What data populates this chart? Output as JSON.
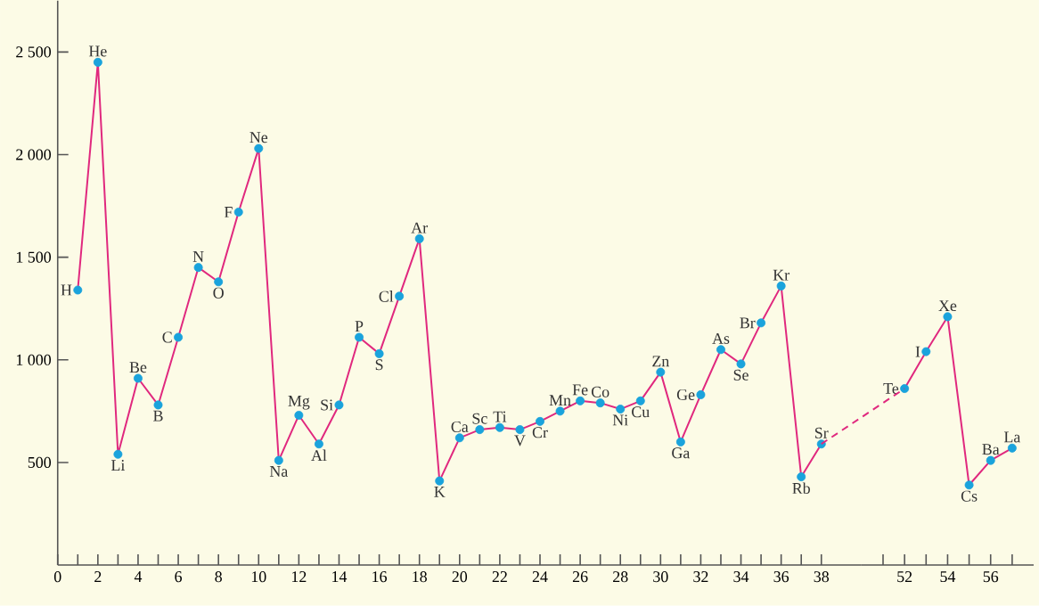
{
  "chart_data": [
    {
      "type": "line",
      "x": [
        1,
        2,
        3,
        4,
        5,
        6,
        7,
        8,
        9,
        10,
        11,
        12,
        13,
        14,
        15,
        16,
        17,
        18,
        19,
        20,
        21,
        22,
        23,
        24,
        25,
        26,
        27,
        28,
        29,
        30,
        31,
        32,
        33,
        34,
        35,
        36,
        37,
        38
      ],
      "series": [
        {
          "color": "#e0287e",
          "colors": [
            "#1aa3dc",
            "#1aa3dc",
            "#1aa3dc",
            "#1aa3dc",
            "#1aa3dc",
            "#1aa3dc",
            "#1aa3dc",
            "#1aa3dc",
            "#1aa3dc",
            "#1aa3dc",
            "#1aa3dc",
            "#1aa3dc",
            "#1aa3dc",
            "#1aa3dc",
            "#1aa3dc",
            "#1aa3dc",
            "#1aa3dc",
            "#1aa3dc",
            "#1aa3dc",
            "#1aa3dc",
            "#1aa3dc",
            "#1aa3dc",
            "#1aa3dc",
            "#1aa3dc",
            "#1aa3dc",
            "#1aa3dc",
            "#1aa3dc",
            "#1aa3dc",
            "#1aa3dc",
            "#1aa3dc",
            "#1aa3dc",
            "#1aa3dc",
            "#1aa3dc",
            "#1aa3dc",
            "#1aa3dc",
            "#1aa3dc",
            "#1aa3dc",
            "#1aa3dc"
          ],
          "values": [
            1340,
            2450,
            540,
            910,
            780,
            1110,
            1450,
            1380,
            1720,
            2030,
            510,
            730,
            590,
            780,
            1110,
            1030,
            1310,
            1590,
            410,
            620,
            660,
            670,
            660,
            700,
            750,
            800,
            790,
            760,
            800,
            940,
            600,
            830,
            1050,
            980,
            1180,
            1360,
            430,
            590
          ]
        }
      ],
      "marker": "circle",
      "line_style": "solid",
      "xlim": [
        0,
        40
      ],
      "ylim": [
        0,
        2750
      ],
      "xticks": [
        0,
        {
          "value": 1,
          "label": null
        },
        2,
        {
          "value": 3,
          "label": null
        },
        4,
        {
          "value": 5,
          "label": null
        },
        6,
        {
          "value": 7,
          "label": null
        },
        8,
        {
          "value": 9,
          "label": null
        },
        10,
        {
          "value": 11,
          "label": null
        },
        12,
        {
          "value": 13,
          "label": null
        },
        14,
        {
          "value": 15,
          "label": null
        },
        16,
        {
          "value": 17,
          "label": null
        },
        18,
        {
          "value": 19,
          "label": null
        },
        20,
        {
          "value": 21,
          "label": null
        },
        22,
        {
          "value": 23,
          "label": null
        },
        24,
        {
          "value": 25,
          "label": null
        },
        26,
        {
          "value": 27,
          "label": null
        },
        28,
        {
          "value": 29,
          "label": null
        },
        30,
        {
          "value": 31,
          "label": null
        },
        32,
        {
          "value": 33,
          "label": null
        },
        34,
        {
          "value": 35,
          "label": null
        },
        36,
        {
          "value": 37,
          "label": null
        },
        38
      ],
      "yticks": [
        500,
        {
          "value": 1000,
          "label": "1 000"
        },
        {
          "value": 1500,
          "label": "1 500"
        },
        {
          "value": 2000,
          "label": "2 000"
        },
        {
          "value": 2500,
          "label": "2 500"
        }
      ],
      "annotations": [
        {
          "text": "H",
          "x": 1,
          "y": 1340
        },
        {
          "text": "He",
          "x": 2,
          "y": 2450
        },
        {
          "text": "Li",
          "x": 3,
          "y": 540
        },
        {
          "text": "Be",
          "x": 4,
          "y": 910
        },
        {
          "text": "B",
          "x": 5,
          "y": 780
        },
        {
          "text": "C",
          "x": 6,
          "y": 1110
        },
        {
          "text": "N",
          "x": 7,
          "y": 1450
        },
        {
          "text": "O",
          "x": 8,
          "y": 1380
        },
        {
          "text": "F",
          "x": 9,
          "y": 1720
        },
        {
          "text": "Ne",
          "x": 10,
          "y": 2030
        },
        {
          "text": "Na",
          "x": 11,
          "y": 510
        },
        {
          "text": "Mg",
          "x": 12,
          "y": 730
        },
        {
          "text": "Al",
          "x": 13,
          "y": 590
        },
        {
          "text": "Si",
          "x": 14,
          "y": 780
        },
        {
          "text": "P",
          "x": 15,
          "y": 1110
        },
        {
          "text": "S",
          "x": 16,
          "y": 1030
        },
        {
          "text": "Cl",
          "x": 17,
          "y": 1310
        },
        {
          "text": "Ar",
          "x": 18,
          "y": 1590
        },
        {
          "text": "K",
          "x": 19,
          "y": 410
        },
        {
          "text": "Ca",
          "x": 20,
          "y": 620
        },
        {
          "text": "Sc",
          "x": 21,
          "y": 660
        },
        {
          "text": "Ti",
          "x": 22,
          "y": 670
        },
        {
          "text": "V",
          "x": 23,
          "y": 660
        },
        {
          "text": "Cr",
          "x": 24,
          "y": 700
        },
        {
          "text": "Mn",
          "x": 25,
          "y": 750
        },
        {
          "text": "Fe",
          "x": 26,
          "y": 800
        },
        {
          "text": "Co",
          "x": 27,
          "y": 790
        },
        {
          "text": "Ni",
          "x": 28,
          "y": 760
        },
        {
          "text": "Cu",
          "x": 29,
          "y": 800
        },
        {
          "text": "Zn",
          "x": 30,
          "y": 940
        },
        {
          "text": "Ga",
          "x": 31,
          "y": 600
        },
        {
          "text": "Ge",
          "x": 32,
          "y": 830
        },
        {
          "text": "As",
          "x": 33,
          "y": 1050
        },
        {
          "text": "Se",
          "x": 34,
          "y": 980
        },
        {
          "text": "Br",
          "x": 35,
          "y": 1180
        },
        {
          "text": "Kr",
          "x": 36,
          "y": 1360
        },
        {
          "text": "Rb",
          "x": 37,
          "y": 430
        },
        {
          "text": "Sr",
          "x": 38,
          "y": 590
        }
      ]
    },
    {
      "type": "line",
      "x": [
        52,
        53,
        54,
        55,
        56,
        57
      ],
      "series": [
        {
          "color": "#e0287e",
          "colors": [
            "#1aa3dc",
            "#1aa3dc",
            "#1aa3dc",
            "#1aa3dc",
            "#1aa3dc",
            "#1aa3dc"
          ],
          "values": [
            860,
            1040,
            1210,
            390,
            510,
            570
          ]
        }
      ],
      "marker": "circle",
      "line_style": "solid",
      "xlim": [
        50,
        58
      ],
      "ylim": [
        0,
        2750
      ],
      "tick_labels": "x",
      "xticks": [
        {
          "value": 51,
          "label": null
        },
        52,
        {
          "value": 53,
          "label": null
        },
        54,
        {
          "value": 55,
          "label": null
        },
        56,
        {
          "value": 57,
          "label": null
        }
      ],
      "annotations": [
        {
          "text": "Te",
          "x": 52,
          "y": 860
        },
        {
          "text": "I",
          "x": 53,
          "y": 1040
        },
        {
          "text": "Xe",
          "x": 54,
          "y": 1210
        },
        {
          "text": "Cs",
          "x": 55,
          "y": 390
        },
        {
          "text": "Ba",
          "x": 56,
          "y": 510
        },
        {
          "text": "La",
          "x": 57,
          "y": 570
        }
      ]
    }
  ]
}
